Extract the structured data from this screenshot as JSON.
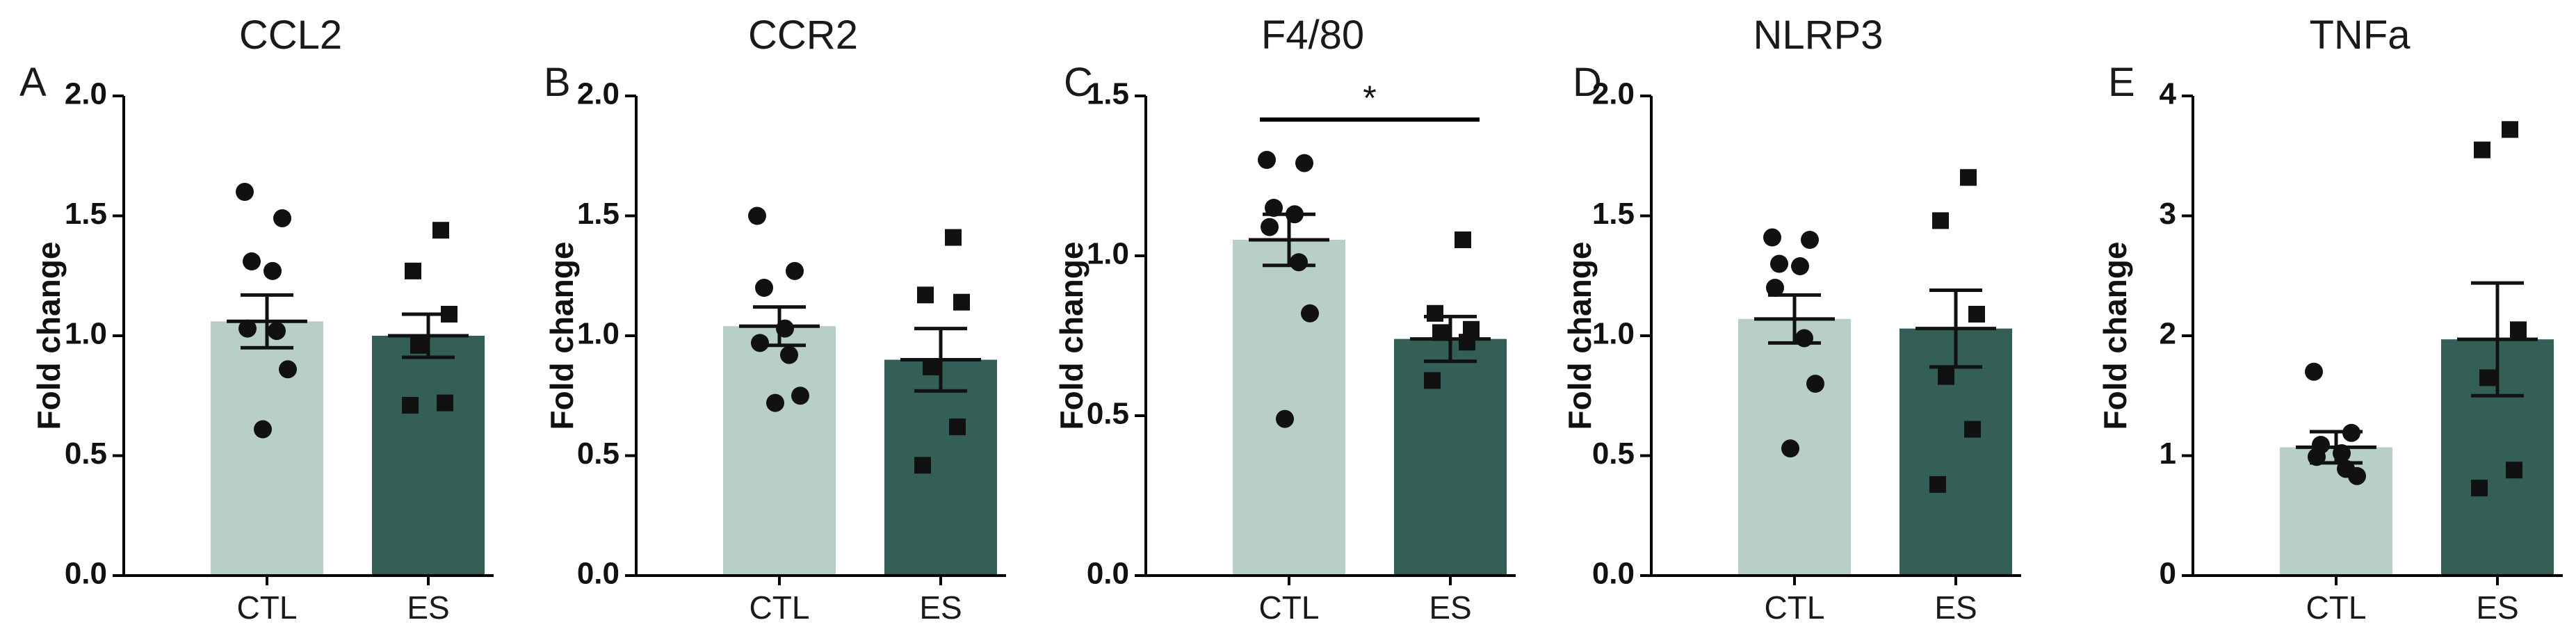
{
  "colors": {
    "ctl": "#b8cfc5",
    "es": "#335f57",
    "axis": "#000000",
    "point": "#111111"
  },
  "chart_data": [
    {
      "type": "bar",
      "panel": "A",
      "title": "CCL2",
      "ylabel": "Fold change",
      "categories": [
        "CTL",
        "ES"
      ],
      "means": [
        1.06,
        1.0
      ],
      "sem": [
        0.11,
        0.09
      ],
      "ylim": [
        0,
        2.0
      ],
      "yticks": [
        0.0,
        0.5,
        1.0,
        1.5,
        2.0
      ],
      "tick_labels": [
        "0.0",
        "0.5",
        "1.0",
        "1.5",
        "2.0"
      ],
      "points": [
        [
          1.6,
          1.49,
          1.31,
          1.27,
          1.03,
          1.02,
          0.86,
          0.61
        ],
        [
          1.44,
          1.27,
          1.09,
          0.96,
          0.72,
          0.71
        ]
      ],
      "significance": null
    },
    {
      "type": "bar",
      "panel": "B",
      "title": "CCR2",
      "ylabel": "Fold change",
      "categories": [
        "CTL",
        "ES"
      ],
      "means": [
        1.04,
        0.9
      ],
      "sem": [
        0.08,
        0.13
      ],
      "ylim": [
        0,
        2.0
      ],
      "yticks": [
        0.0,
        0.5,
        1.0,
        1.5,
        2.0
      ],
      "tick_labels": [
        "0.0",
        "0.5",
        "1.0",
        "1.5",
        "2.0"
      ],
      "points": [
        [
          1.5,
          1.27,
          1.2,
          1.03,
          0.97,
          0.92,
          0.75,
          0.72
        ],
        [
          1.41,
          1.17,
          1.14,
          0.87,
          0.62,
          0.46
        ]
      ],
      "significance": null
    },
    {
      "type": "bar",
      "panel": "C",
      "title": "F4/80",
      "ylabel": "Fold change",
      "categories": [
        "CTL",
        "ES"
      ],
      "means": [
        1.05,
        0.74
      ],
      "sem": [
        0.08,
        0.07
      ],
      "ylim": [
        0,
        1.5
      ],
      "yticks": [
        0.0,
        0.5,
        1.0,
        1.5
      ],
      "tick_labels": [
        "0.0",
        "0.5",
        "1.0",
        "1.5"
      ],
      "points": [
        [
          1.3,
          1.29,
          1.15,
          1.13,
          1.09,
          0.98,
          0.82,
          0.49
        ],
        [
          1.05,
          0.82,
          0.77,
          0.76,
          0.73,
          0.61
        ]
      ],
      "significance": "*"
    },
    {
      "type": "bar",
      "panel": "D",
      "title": "NLRP3",
      "ylabel": "Fold change",
      "categories": [
        "CTL",
        "ES"
      ],
      "means": [
        1.07,
        1.03
      ],
      "sem": [
        0.1,
        0.16
      ],
      "ylim": [
        0,
        2.0
      ],
      "yticks": [
        0.0,
        0.5,
        1.0,
        1.5,
        2.0
      ],
      "tick_labels": [
        "0.0",
        "0.5",
        "1.0",
        "1.5",
        "2.0"
      ],
      "points": [
        [
          1.41,
          1.4,
          1.3,
          1.29,
          1.2,
          0.99,
          0.8,
          0.53
        ],
        [
          1.66,
          1.48,
          1.09,
          0.83,
          0.61,
          0.38
        ]
      ],
      "significance": null
    },
    {
      "type": "bar",
      "panel": "E",
      "title": "TNFa",
      "ylabel": "Fold change",
      "categories": [
        "CTL",
        "ES"
      ],
      "means": [
        1.07,
        1.97
      ],
      "sem": [
        0.13,
        0.47
      ],
      "ylim": [
        0,
        4
      ],
      "yticks": [
        0,
        1,
        2,
        3,
        4
      ],
      "tick_labels": [
        "0",
        "1",
        "2",
        "3",
        "4"
      ],
      "points": [
        [
          1.7,
          1.19,
          1.09,
          1.02,
          0.99,
          0.89,
          0.83
        ],
        [
          3.72,
          3.55,
          2.05,
          1.65,
          0.88,
          0.73
        ]
      ],
      "significance": null
    }
  ]
}
